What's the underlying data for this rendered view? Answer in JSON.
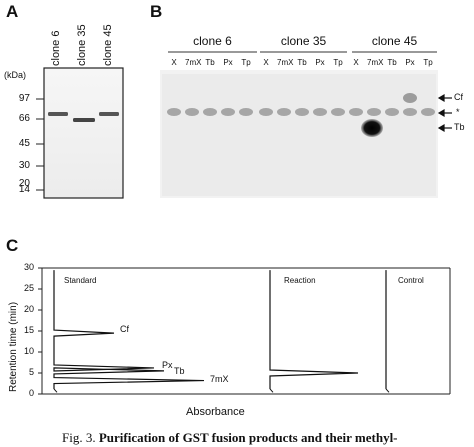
{
  "panelA": {
    "label": "A",
    "lanes": [
      "clone 6",
      "clone 35",
      "clone 45"
    ],
    "unit": "(kDa)",
    "markers": [
      "97",
      "66",
      "45",
      "30",
      "20",
      "14"
    ]
  },
  "panelB": {
    "label": "B",
    "groups": [
      "clone 6",
      "clone 35",
      "clone 45"
    ],
    "lanes": [
      "X",
      "7mX",
      "Tb",
      "Px",
      "Tp",
      "X",
      "7mX",
      "Tb",
      "Px",
      "Tp",
      "X",
      "7mX",
      "Tb",
      "Px",
      "Tp"
    ],
    "markers": [
      "Cf",
      "*",
      "Tb"
    ]
  },
  "panelC": {
    "label": "C",
    "chart_data": {
      "type": "line",
      "ylabel": "Retention time (min)",
      "xlabel": "Absorbance",
      "ylim": [
        0,
        30
      ],
      "yticks": [
        "0",
        "5",
        "10",
        "15",
        "20",
        "25",
        "30"
      ],
      "traces": [
        "Standard",
        "Reaction",
        "Control"
      ],
      "peak_labels": [
        "Cf",
        "Px",
        "Tb",
        "7mX"
      ],
      "series": [
        {
          "name": "Standard",
          "peaks": [
            {
              "label": "Cf",
              "x": 14.5
            },
            {
              "label": "Px",
              "x": 6.2
            },
            {
              "label": "Tb",
              "x": 5.5
            },
            {
              "label": "7mX",
              "x": 3.2
            }
          ]
        },
        {
          "name": "Reaction",
          "peaks": [
            {
              "x": 5.0
            }
          ]
        },
        {
          "name": "Control",
          "peaks": []
        }
      ]
    }
  },
  "caption": {
    "prefix": "Fig. 3.",
    "text": "Purification of GST fusion products and their methyl-"
  }
}
